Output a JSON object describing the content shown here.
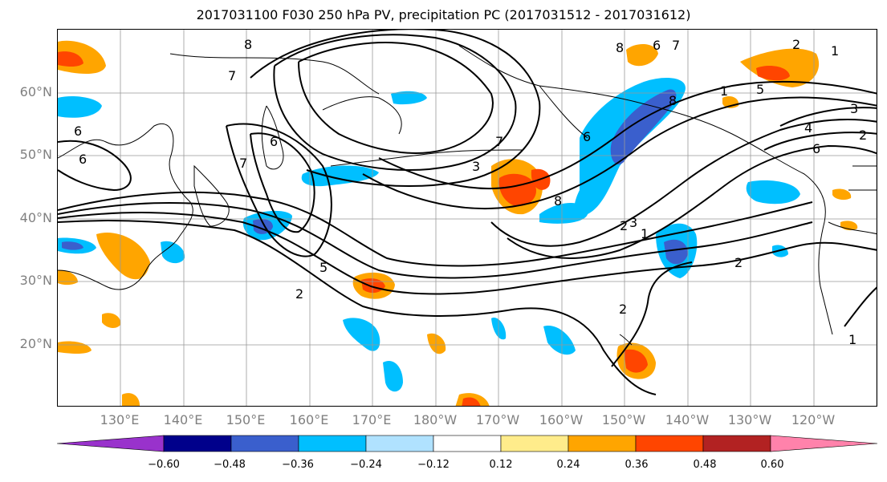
{
  "title": "2017031100 F030 250 hPa PV, precipitation PC (2017031512 - 2017031612)",
  "map": {
    "lat_labels": [
      "60°N",
      "50°N",
      "40°N",
      "30°N",
      "20°N"
    ],
    "lon_labels": [
      "130°E",
      "140°E",
      "150°E",
      "160°E",
      "170°E",
      "180°W",
      "170°W",
      "160°W",
      "150°W",
      "140°W",
      "130°W",
      "120°W"
    ],
    "grid": true,
    "contour_color": "#000000",
    "contour_labels": [
      "8",
      "7",
      "6",
      "8",
      "6",
      "6",
      "7",
      "5",
      "6",
      "7",
      "3",
      "2",
      "8",
      "7",
      "6",
      "1",
      "2",
      "3",
      "1",
      "2",
      "5",
      "2",
      "1",
      "2",
      "1",
      "3",
      "6",
      "4",
      "2",
      "8"
    ]
  },
  "colorbar": {
    "colors": [
      "#9932cc",
      "#00008b",
      "#3a5fcd",
      "#00bfff",
      "#b0e2ff",
      "#ffffff",
      "#ffec8b",
      "#ffa500",
      "#ff4500",
      "#b22222",
      "#ff82ab"
    ],
    "tick_labels": [
      "−0.60",
      "−0.48",
      "−0.36",
      "−0.24",
      "−0.12",
      "0.12",
      "0.24",
      "0.36",
      "0.48",
      "0.60"
    ]
  }
}
